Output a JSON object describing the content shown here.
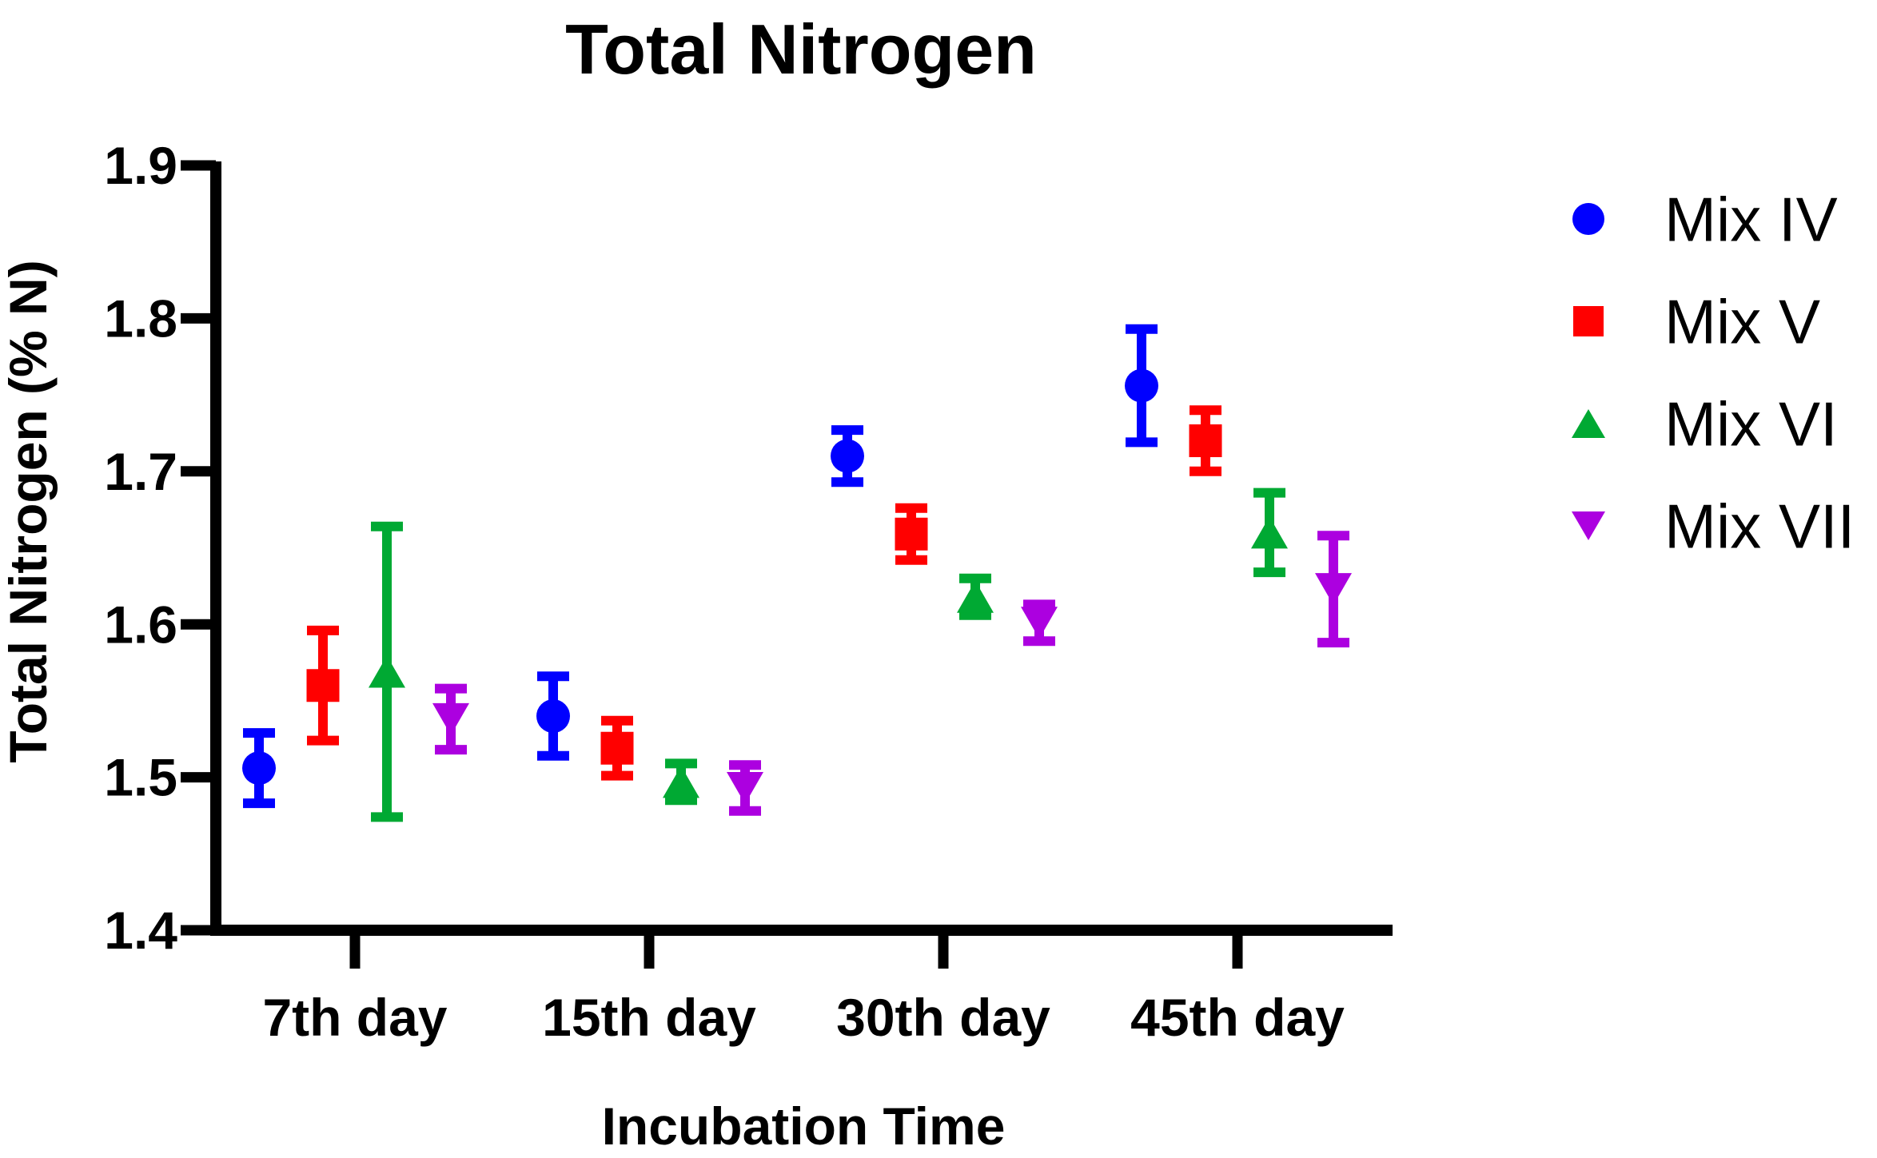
{
  "page": {
    "background": "#FFFFFF"
  },
  "chart_data": {
    "type": "scatter",
    "title": "Total Nitrogen",
    "xlabel": "Incubation Time",
    "ylabel": "Total Nitrogen (% N)",
    "categories": [
      "7th day",
      "15th day",
      "30th day",
      "45th day"
    ],
    "ylim": [
      1.4,
      1.9
    ],
    "y_tick_step": 0.1,
    "y_tick_labels": [
      "1.4",
      "1.5",
      "1.6",
      "1.7",
      "1.8",
      "1.9"
    ],
    "grid": false,
    "legend_position": "right",
    "error_bars": "mean ± error with caps",
    "axis_color": "#000000",
    "series": [
      {
        "name": "Mix IV",
        "marker": "circle",
        "color": "#0000FF",
        "values": [
          1.506,
          1.54,
          1.71,
          1.756
        ],
        "errors": [
          0.023,
          0.026,
          0.017,
          0.037
        ]
      },
      {
        "name": "Mix V",
        "marker": "square",
        "color": "#FF0000",
        "values": [
          1.56,
          1.519,
          1.659,
          1.72
        ],
        "errors": [
          0.036,
          0.018,
          0.017,
          0.02
        ]
      },
      {
        "name": "Mix VI",
        "marker": "triangle-up",
        "color": "#00A933",
        "values": [
          1.569,
          1.497,
          1.618,
          1.66
        ],
        "errors": [
          0.095,
          0.012,
          0.012,
          0.026
        ]
      },
      {
        "name": "Mix VII",
        "marker": "triangle-down",
        "color": "#AC00E0",
        "values": [
          1.538,
          1.493,
          1.601,
          1.623
        ],
        "errors": [
          0.02,
          0.015,
          0.012,
          0.035
        ]
      }
    ]
  }
}
